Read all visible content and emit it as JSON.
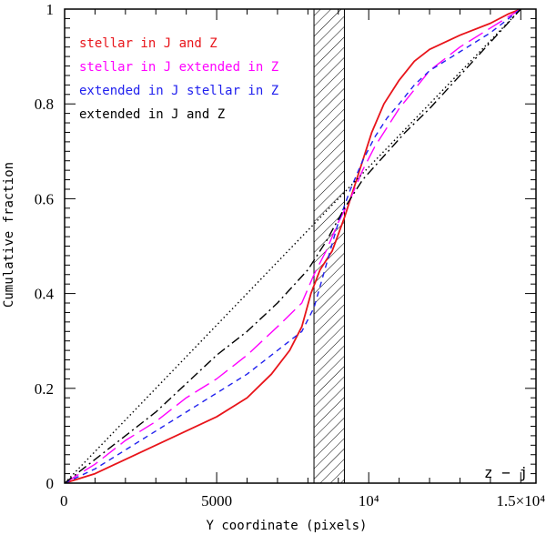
{
  "chart_data": {
    "type": "line",
    "title": "",
    "xlabel": "Y coordinate (pixels)",
    "ylabel": "Cumulative fraction",
    "xlim": [
      0,
      15500
    ],
    "ylim": [
      0,
      1
    ],
    "x_tick_labels": [
      {
        "value": 0,
        "label": "0"
      },
      {
        "value": 5000,
        "label": "5000"
      },
      {
        "value": 10000,
        "label": "10⁴"
      },
      {
        "value": 15000,
        "label": "1.5×10⁴"
      }
    ],
    "y_tick_labels": [
      {
        "value": 0,
        "label": "0"
      },
      {
        "value": 0.2,
        "label": "0.2"
      },
      {
        "value": 0.4,
        "label": "0.4"
      },
      {
        "value": 0.6,
        "label": "0.6"
      },
      {
        "value": 0.8,
        "label": "0.8"
      },
      {
        "value": 1,
        "label": "1"
      }
    ],
    "grid": false,
    "legend_position": "top-left",
    "corner_label": "z − j",
    "shaded_band": {
      "x_from": 8200,
      "x_to": 9200,
      "pattern": "diagonal hatch"
    },
    "series": [
      {
        "name": "stellar in J and Z",
        "color": "#e8141a",
        "dash": "solid",
        "points": [
          [
            0,
            0
          ],
          [
            1000,
            0.02
          ],
          [
            2000,
            0.05
          ],
          [
            3000,
            0.08
          ],
          [
            4000,
            0.11
          ],
          [
            5000,
            0.14
          ],
          [
            6000,
            0.18
          ],
          [
            6800,
            0.23
          ],
          [
            7400,
            0.28
          ],
          [
            7800,
            0.33
          ],
          [
            8100,
            0.4
          ],
          [
            8400,
            0.45
          ],
          [
            8800,
            0.49
          ],
          [
            9200,
            0.56
          ],
          [
            9500,
            0.62
          ],
          [
            9800,
            0.68
          ],
          [
            10100,
            0.74
          ],
          [
            10500,
            0.8
          ],
          [
            11000,
            0.85
          ],
          [
            11500,
            0.89
          ],
          [
            12000,
            0.915
          ],
          [
            13000,
            0.945
          ],
          [
            14000,
            0.97
          ],
          [
            14600,
            0.99
          ],
          [
            15000,
            1.0
          ]
        ]
      },
      {
        "name": "stellar in J extended in Z",
        "color": "#ff00ff",
        "dash": "long-dash",
        "points": [
          [
            0,
            0
          ],
          [
            1000,
            0.04
          ],
          [
            2000,
            0.09
          ],
          [
            3000,
            0.13
          ],
          [
            4000,
            0.18
          ],
          [
            5000,
            0.22
          ],
          [
            6000,
            0.27
          ],
          [
            7000,
            0.33
          ],
          [
            7800,
            0.38
          ],
          [
            8200,
            0.44
          ],
          [
            8600,
            0.49
          ],
          [
            9000,
            0.55
          ],
          [
            9400,
            0.6
          ],
          [
            9800,
            0.66
          ],
          [
            10200,
            0.71
          ],
          [
            10600,
            0.75
          ],
          [
            11000,
            0.79
          ],
          [
            11500,
            0.83
          ],
          [
            12000,
            0.87
          ],
          [
            13000,
            0.92
          ],
          [
            14000,
            0.96
          ],
          [
            15000,
            1.0
          ]
        ]
      },
      {
        "name": "extended in J stellar in Z",
        "color": "#2020ee",
        "dash": "short-dash",
        "points": [
          [
            0,
            0
          ],
          [
            1000,
            0.03
          ],
          [
            2000,
            0.07
          ],
          [
            3000,
            0.11
          ],
          [
            4000,
            0.15
          ],
          [
            5000,
            0.19
          ],
          [
            6000,
            0.23
          ],
          [
            7000,
            0.28
          ],
          [
            7800,
            0.32
          ],
          [
            8200,
            0.37
          ],
          [
            8600,
            0.46
          ],
          [
            9000,
            0.55
          ],
          [
            9400,
            0.62
          ],
          [
            9800,
            0.68
          ],
          [
            10200,
            0.73
          ],
          [
            10600,
            0.77
          ],
          [
            11000,
            0.8
          ],
          [
            11500,
            0.84
          ],
          [
            12000,
            0.87
          ],
          [
            13000,
            0.91
          ],
          [
            14000,
            0.95
          ],
          [
            15000,
            1.0
          ]
        ]
      },
      {
        "name": "extended in J and Z",
        "color": "#000000",
        "dash": "dash-dot",
        "points": [
          [
            0,
            0
          ],
          [
            1000,
            0.05
          ],
          [
            2000,
            0.1
          ],
          [
            3000,
            0.15
          ],
          [
            4000,
            0.21
          ],
          [
            5000,
            0.27
          ],
          [
            6000,
            0.32
          ],
          [
            7000,
            0.38
          ],
          [
            8000,
            0.45
          ],
          [
            8600,
            0.51
          ],
          [
            9200,
            0.58
          ],
          [
            9800,
            0.64
          ],
          [
            10500,
            0.69
          ],
          [
            11200,
            0.74
          ],
          [
            12000,
            0.79
          ],
          [
            13000,
            0.86
          ],
          [
            14000,
            0.93
          ],
          [
            15000,
            1.0
          ]
        ]
      },
      {
        "name": "",
        "color": "#000000",
        "dash": "dotted",
        "points": [
          [
            0,
            0
          ],
          [
            15000,
            1.0
          ]
        ]
      }
    ]
  }
}
